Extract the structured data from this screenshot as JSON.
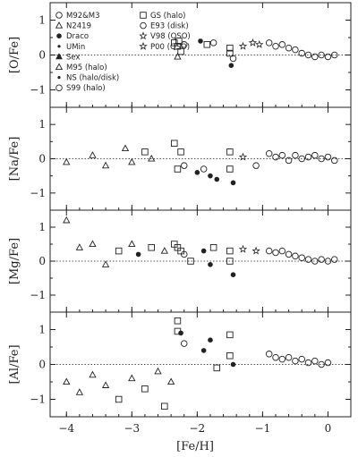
{
  "chart_data": [
    {
      "type": "scatter",
      "ylabel": "[O/Fe]",
      "xlim": [
        -4.25,
        0.35
      ],
      "ylim": [
        -1.5,
        1.5
      ],
      "yticks": [
        -1,
        0,
        1
      ],
      "points": [
        {
          "x": -2.35,
          "y": 0.35,
          "s": "box"
        },
        {
          "x": -2.3,
          "y": 0.25,
          "s": "box"
        },
        {
          "x": -2.25,
          "y": 0.1,
          "s": "box"
        },
        {
          "x": -2.28,
          "y": 0.4,
          "s": "box"
        },
        {
          "x": -2.2,
          "y": 0.3,
          "s": "circle"
        },
        {
          "x": -2.3,
          "y": -0.05,
          "s": "tri"
        },
        {
          "x": -1.95,
          "y": 0.4,
          "s": "dot"
        },
        {
          "x": -1.85,
          "y": 0.3,
          "s": "box"
        },
        {
          "x": -1.75,
          "y": 0.35,
          "s": "circle"
        },
        {
          "x": -1.5,
          "y": 0.2,
          "s": "box"
        },
        {
          "x": -1.5,
          "y": 0.05,
          "s": "box"
        },
        {
          "x": -1.48,
          "y": -0.3,
          "s": "dot"
        },
        {
          "x": -1.45,
          "y": -0.1,
          "s": "circle"
        },
        {
          "x": -1.3,
          "y": 0.25,
          "s": "star"
        },
        {
          "x": -1.15,
          "y": 0.35,
          "s": "star"
        },
        {
          "x": -1.05,
          "y": 0.3,
          "s": "star"
        },
        {
          "x": -0.9,
          "y": 0.35,
          "s": "circle"
        },
        {
          "x": -0.8,
          "y": 0.25,
          "s": "circle"
        },
        {
          "x": -0.7,
          "y": 0.3,
          "s": "circle"
        },
        {
          "x": -0.6,
          "y": 0.2,
          "s": "circle"
        },
        {
          "x": -0.5,
          "y": 0.15,
          "s": "circle"
        },
        {
          "x": -0.4,
          "y": 0.05,
          "s": "circle"
        },
        {
          "x": -0.3,
          "y": 0.0,
          "s": "circle"
        },
        {
          "x": -0.2,
          "y": -0.05,
          "s": "circle"
        },
        {
          "x": -0.1,
          "y": 0.0,
          "s": "circle"
        },
        {
          "x": 0.0,
          "y": -0.05,
          "s": "circle"
        },
        {
          "x": 0.1,
          "y": 0.0,
          "s": "circle"
        }
      ]
    },
    {
      "type": "scatter",
      "ylabel": "[Na/Fe]",
      "xlim": [
        -4.25,
        0.35
      ],
      "ylim": [
        -1.5,
        1.5
      ],
      "yticks": [
        -1,
        0,
        1
      ],
      "points": [
        {
          "x": -4.0,
          "y": -0.1,
          "s": "tri"
        },
        {
          "x": -3.6,
          "y": 0.1,
          "s": "tri"
        },
        {
          "x": -3.4,
          "y": -0.2,
          "s": "tri"
        },
        {
          "x": -3.1,
          "y": 0.3,
          "s": "tri"
        },
        {
          "x": -3.0,
          "y": -0.1,
          "s": "tri"
        },
        {
          "x": -2.8,
          "y": 0.2,
          "s": "box"
        },
        {
          "x": -2.7,
          "y": 0.0,
          "s": "tri"
        },
        {
          "x": -2.35,
          "y": 0.45,
          "s": "box"
        },
        {
          "x": -2.3,
          "y": -0.3,
          "s": "box"
        },
        {
          "x": -2.25,
          "y": 0.2,
          "s": "box"
        },
        {
          "x": -2.2,
          "y": -0.2,
          "s": "circle"
        },
        {
          "x": -2.0,
          "y": -0.4,
          "s": "dot"
        },
        {
          "x": -1.9,
          "y": -0.3,
          "s": "circle"
        },
        {
          "x": -1.8,
          "y": -0.5,
          "s": "dot"
        },
        {
          "x": -1.7,
          "y": -0.6,
          "s": "dot"
        },
        {
          "x": -1.5,
          "y": 0.2,
          "s": "box"
        },
        {
          "x": -1.5,
          "y": -0.3,
          "s": "box"
        },
        {
          "x": -1.45,
          "y": -0.7,
          "s": "dot"
        },
        {
          "x": -1.3,
          "y": 0.05,
          "s": "star"
        },
        {
          "x": -1.1,
          "y": -0.2,
          "s": "circle"
        },
        {
          "x": -0.9,
          "y": 0.15,
          "s": "circle"
        },
        {
          "x": -0.8,
          "y": 0.05,
          "s": "circle"
        },
        {
          "x": -0.7,
          "y": 0.1,
          "s": "circle"
        },
        {
          "x": -0.6,
          "y": -0.05,
          "s": "circle"
        },
        {
          "x": -0.5,
          "y": 0.1,
          "s": "circle"
        },
        {
          "x": -0.4,
          "y": 0.0,
          "s": "circle"
        },
        {
          "x": -0.3,
          "y": 0.05,
          "s": "circle"
        },
        {
          "x": -0.2,
          "y": 0.1,
          "s": "circle"
        },
        {
          "x": -0.1,
          "y": 0.0,
          "s": "circle"
        },
        {
          "x": 0.0,
          "y": 0.05,
          "s": "circle"
        },
        {
          "x": 0.1,
          "y": -0.05,
          "s": "circle"
        }
      ]
    },
    {
      "type": "scatter",
      "ylabel": "[Mg/Fe]",
      "xlim": [
        -4.25,
        0.35
      ],
      "ylim": [
        -1.5,
        1.5
      ],
      "yticks": [
        -1,
        0,
        1
      ],
      "points": [
        {
          "x": -4.0,
          "y": 1.2,
          "s": "tri"
        },
        {
          "x": -3.8,
          "y": 0.4,
          "s": "tri"
        },
        {
          "x": -3.6,
          "y": 0.5,
          "s": "tri"
        },
        {
          "x": -3.4,
          "y": -0.1,
          "s": "tri"
        },
        {
          "x": -3.2,
          "y": 0.3,
          "s": "box"
        },
        {
          "x": -3.0,
          "y": 0.5,
          "s": "tri"
        },
        {
          "x": -2.9,
          "y": 0.2,
          "s": "dot"
        },
        {
          "x": -2.7,
          "y": 0.4,
          "s": "box"
        },
        {
          "x": -2.5,
          "y": 0.3,
          "s": "tri"
        },
        {
          "x": -2.35,
          "y": 0.5,
          "s": "box"
        },
        {
          "x": -2.3,
          "y": 0.4,
          "s": "box"
        },
        {
          "x": -2.25,
          "y": 0.3,
          "s": "box"
        },
        {
          "x": -2.2,
          "y": 0.2,
          "s": "circle"
        },
        {
          "x": -2.1,
          "y": 0.0,
          "s": "box"
        },
        {
          "x": -1.9,
          "y": 0.3,
          "s": "dot"
        },
        {
          "x": -1.8,
          "y": -0.1,
          "s": "dot"
        },
        {
          "x": -1.75,
          "y": 0.4,
          "s": "box"
        },
        {
          "x": -1.5,
          "y": 0.3,
          "s": "box"
        },
        {
          "x": -1.5,
          "y": 0.0,
          "s": "box"
        },
        {
          "x": -1.45,
          "y": -0.4,
          "s": "dot"
        },
        {
          "x": -1.3,
          "y": 0.35,
          "s": "star"
        },
        {
          "x": -1.1,
          "y": 0.3,
          "s": "star"
        },
        {
          "x": -0.9,
          "y": 0.3,
          "s": "circle"
        },
        {
          "x": -0.8,
          "y": 0.25,
          "s": "circle"
        },
        {
          "x": -0.7,
          "y": 0.3,
          "s": "circle"
        },
        {
          "x": -0.6,
          "y": 0.2,
          "s": "circle"
        },
        {
          "x": -0.5,
          "y": 0.15,
          "s": "circle"
        },
        {
          "x": -0.4,
          "y": 0.1,
          "s": "circle"
        },
        {
          "x": -0.3,
          "y": 0.05,
          "s": "circle"
        },
        {
          "x": -0.2,
          "y": 0.0,
          "s": "circle"
        },
        {
          "x": -0.1,
          "y": 0.05,
          "s": "circle"
        },
        {
          "x": 0.0,
          "y": 0.0,
          "s": "circle"
        },
        {
          "x": 0.1,
          "y": 0.05,
          "s": "circle"
        }
      ]
    },
    {
      "type": "scatter",
      "ylabel": "[Al/Fe]",
      "xlim": [
        -4.25,
        0.35
      ],
      "ylim": [
        -1.5,
        1.5
      ],
      "yticks": [
        -1,
        0,
        1
      ],
      "points": [
        {
          "x": -4.0,
          "y": -0.5,
          "s": "tri"
        },
        {
          "x": -3.8,
          "y": -0.8,
          "s": "tri"
        },
        {
          "x": -3.6,
          "y": -0.3,
          "s": "tri"
        },
        {
          "x": -3.4,
          "y": -0.6,
          "s": "tri"
        },
        {
          "x": -3.2,
          "y": -1.0,
          "s": "box"
        },
        {
          "x": -3.0,
          "y": -0.4,
          "s": "tri"
        },
        {
          "x": -2.8,
          "y": -0.7,
          "s": "box"
        },
        {
          "x": -2.6,
          "y": -0.2,
          "s": "tri"
        },
        {
          "x": -2.5,
          "y": -1.2,
          "s": "box"
        },
        {
          "x": -2.4,
          "y": -0.5,
          "s": "tri"
        },
        {
          "x": -2.3,
          "y": 1.25,
          "s": "box"
        },
        {
          "x": -2.3,
          "y": 0.95,
          "s": "box"
        },
        {
          "x": -2.25,
          "y": 0.9,
          "s": "dot"
        },
        {
          "x": -2.2,
          "y": 0.6,
          "s": "circle"
        },
        {
          "x": -1.9,
          "y": 0.4,
          "s": "dot"
        },
        {
          "x": -1.8,
          "y": 0.7,
          "s": "dot"
        },
        {
          "x": -1.7,
          "y": -0.1,
          "s": "box"
        },
        {
          "x": -1.5,
          "y": 0.85,
          "s": "box"
        },
        {
          "x": -1.5,
          "y": 0.25,
          "s": "box"
        },
        {
          "x": -1.45,
          "y": 0.0,
          "s": "dot"
        },
        {
          "x": -0.9,
          "y": 0.3,
          "s": "circle"
        },
        {
          "x": -0.8,
          "y": 0.2,
          "s": "circle"
        },
        {
          "x": -0.7,
          "y": 0.15,
          "s": "circle"
        },
        {
          "x": -0.6,
          "y": 0.2,
          "s": "circle"
        },
        {
          "x": -0.5,
          "y": 0.1,
          "s": "circle"
        },
        {
          "x": -0.4,
          "y": 0.15,
          "s": "circle"
        },
        {
          "x": -0.3,
          "y": 0.05,
          "s": "circle"
        },
        {
          "x": -0.2,
          "y": 0.1,
          "s": "circle"
        },
        {
          "x": -0.1,
          "y": 0.0,
          "s": "circle"
        },
        {
          "x": 0.0,
          "y": 0.05,
          "s": "circle"
        }
      ]
    }
  ],
  "xaxis": {
    "label": "[Fe/H]",
    "ticks": [
      -4,
      -3,
      -2,
      -1,
      0
    ],
    "tick_labels": [
      "−4",
      "−3",
      "−2",
      "−1",
      "0"
    ]
  },
  "legend": [
    {
      "label": "M92&M3",
      "s": "circle"
    },
    {
      "label": "N2419",
      "s": "tri"
    },
    {
      "label": "Draco",
      "s": "dot"
    },
    {
      "label": "UMin",
      "s": "smalldot"
    },
    {
      "label": "Sex",
      "s": "filltri"
    },
    {
      "label": "M95 (halo)",
      "s": "tri"
    },
    {
      "label": "NS (halo/disk)",
      "s": "smalldot"
    },
    {
      "label": "S99 (halo)",
      "s": "circle"
    },
    {
      "label": "GS (halo)",
      "s": "box"
    },
    {
      "label": "E93 (disk)",
      "s": "circle"
    },
    {
      "label": "V98 (QSO)",
      "s": "star"
    },
    {
      "label": "P00 (QSO)",
      "s": "star"
    }
  ],
  "colors": {
    "ink": "#222222",
    "reference_line": "#555555"
  }
}
